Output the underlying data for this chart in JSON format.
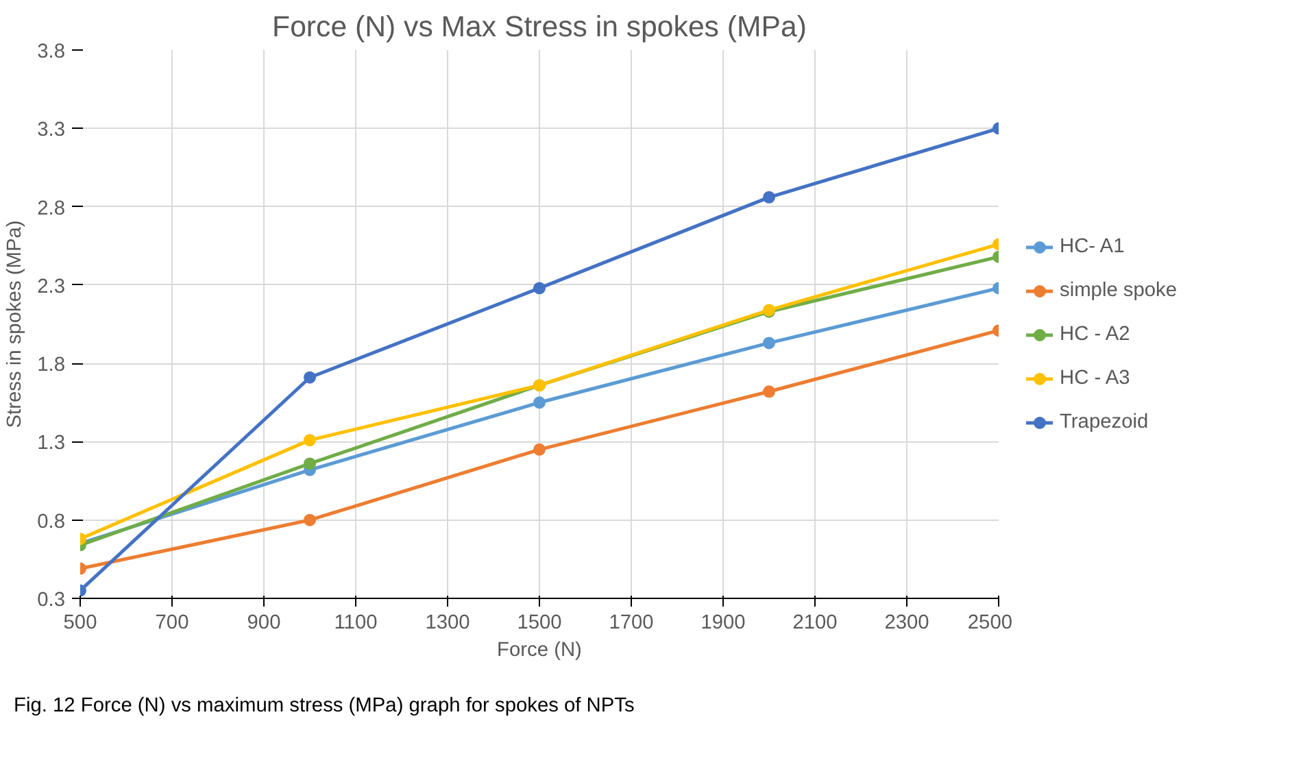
{
  "chart_data": {
    "type": "line",
    "title": "Force (N) vs Max Stress in spokes (MPa)",
    "xlabel": "Force (N)",
    "ylabel": "Stress in spokes (MPa)",
    "x": [
      500,
      1000,
      1500,
      2000,
      2500
    ],
    "series": [
      {
        "name": "HC- A1",
        "color": "#5b9bd5",
        "values": [
          0.65,
          1.12,
          1.55,
          1.93,
          2.28
        ]
      },
      {
        "name": "simple spoke",
        "color": "#ed7d31",
        "values": [
          0.49,
          0.8,
          1.25,
          1.62,
          2.01
        ]
      },
      {
        "name": "HC - A2",
        "color": "#70ad47",
        "values": [
          0.64,
          1.16,
          1.66,
          2.13,
          2.48
        ]
      },
      {
        "name": "HC - A3",
        "color": "#ffc000",
        "values": [
          0.68,
          1.31,
          1.66,
          2.14,
          2.56
        ]
      },
      {
        "name": "Trapezoid",
        "color": "#4472c4",
        "values": [
          0.35,
          1.71,
          2.28,
          2.86,
          3.3
        ]
      }
    ],
    "xlim": [
      500,
      2500
    ],
    "xticks": [
      500,
      700,
      900,
      1100,
      1300,
      1500,
      1700,
      1900,
      2100,
      2300,
      2500
    ],
    "ylim": [
      0.3,
      3.8
    ],
    "yticks": [
      0.3,
      0.8,
      1.3,
      1.8,
      2.3,
      2.8,
      3.3,
      3.8
    ],
    "grid": true,
    "legend": "right",
    "marker": "circle",
    "line_style": "solid",
    "annotations": [
      "Fig. 12  Force (N) vs maximum stress (MPa) graph for spokes of NPTs"
    ]
  }
}
